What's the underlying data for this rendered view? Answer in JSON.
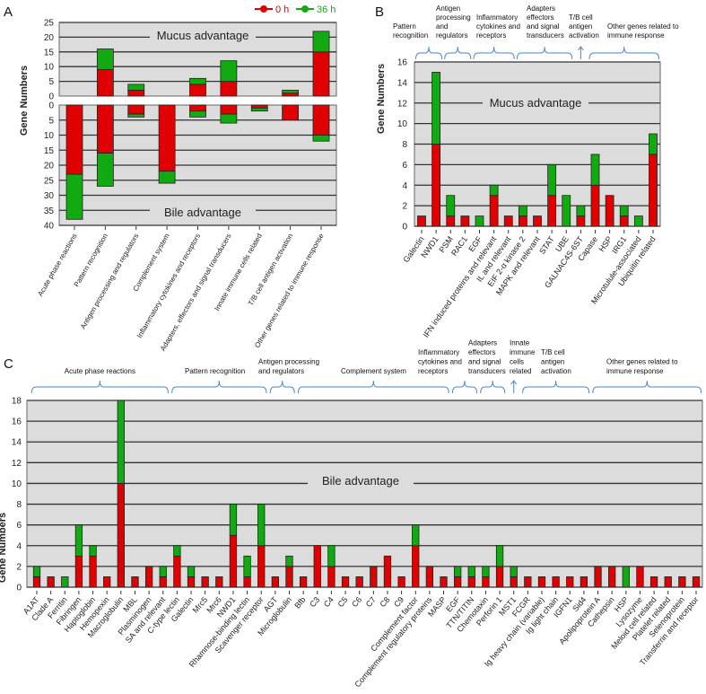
{
  "legend": {
    "series": [
      {
        "name": "0 h",
        "color": "#e00000"
      },
      {
        "name": "36 h",
        "color": "#11aa11"
      }
    ]
  },
  "chart_data": [
    {
      "panel": "A",
      "type": "bar",
      "stacked": true,
      "ylabel": "Gene Numbers",
      "top_region_label": "Mucus advantage",
      "bottom_region_label": "Bile advantage",
      "ylim_top": [
        0,
        25
      ],
      "ylim_bottom": [
        0,
        40
      ],
      "yticks_top": [
        0,
        5,
        10,
        15,
        20,
        25
      ],
      "yticks_bottom": [
        0,
        5,
        10,
        15,
        20,
        25,
        30,
        35,
        40
      ],
      "categories": [
        "Acute phase reactions",
        "Pattern recognition",
        "Antigen processing and regulators",
        "Complement system",
        "Inflammatory cytokines and receptors",
        "Adapters, effectors and signal transducers",
        "Innate immune cells related",
        "T/B cell antigen activation",
        "Other genes related to immune response"
      ],
      "series": [
        {
          "name": "0 h",
          "mucus": [
            0,
            9,
            2,
            0,
            4,
            5,
            0,
            1,
            15
          ],
          "bile": [
            23,
            16,
            3,
            22,
            2,
            3,
            1,
            5,
            10
          ]
        },
        {
          "name": "36 h",
          "mucus": [
            0,
            7,
            2,
            0,
            2,
            7,
            0,
            1,
            7
          ],
          "bile": [
            15,
            11,
            1,
            4,
            2,
            3,
            1,
            0,
            2
          ]
        }
      ]
    },
    {
      "panel": "B",
      "type": "bar",
      "stacked": true,
      "ylabel": "Gene Numbers",
      "region_label": "Mucus advantage",
      "ylim": [
        0,
        16
      ],
      "yticks": [
        0,
        2,
        4,
        6,
        8,
        10,
        12,
        14,
        16
      ],
      "categories": [
        "Galectin",
        "NWD1",
        "PSM",
        "RAC1",
        "EGF",
        "IFN induced proteins and relevant",
        "IL and relevant",
        "EIF 2-α kinase 2",
        "MAPK and relevant",
        "STAT",
        "UBE",
        "GALNAC4S-6ST",
        "Capase",
        "HSP",
        "IRG1",
        "Microtulule-associated",
        "Ubiquitin related"
      ],
      "groups": [
        {
          "lines": [
            "Pattern",
            "recognition"
          ],
          "start": 0,
          "end": 1
        },
        {
          "lines": [
            "Antigen",
            "processing",
            "and",
            "regulators"
          ],
          "start": 2,
          "end": 3
        },
        {
          "lines": [
            "Inflammatory",
            "cytokines and",
            "receptors"
          ],
          "start": 4,
          "end": 6
        },
        {
          "lines": [
            "Adapters",
            "effectors",
            "and signal",
            "transducers"
          ],
          "start": 7,
          "end": 10
        },
        {
          "lines": [
            "T/B cell",
            "antigen",
            "activation"
          ],
          "start": 11,
          "end": 11,
          "arrow": true
        },
        {
          "lines": [
            "Other genes related to",
            "immune response"
          ],
          "start": 12,
          "end": 16
        }
      ],
      "series": [
        {
          "name": "0 h",
          "values": [
            1,
            8,
            1,
            1,
            0,
            3,
            1,
            1,
            1,
            3,
            0,
            1,
            4,
            3,
            1,
            0,
            7
          ]
        },
        {
          "name": "36 h",
          "values": [
            0,
            7,
            2,
            0,
            1,
            1,
            0,
            1,
            0,
            3,
            3,
            1,
            3,
            0,
            1,
            1,
            2
          ]
        }
      ]
    },
    {
      "panel": "C",
      "type": "bar",
      "stacked": true,
      "ylabel": "Gene Numbers",
      "region_label": "Bile advantage",
      "ylim": [
        0,
        18
      ],
      "yticks": [
        0,
        2,
        4,
        6,
        8,
        10,
        12,
        14,
        16,
        18
      ],
      "categories": [
        "A1AT",
        "Clade A",
        "Ferritin",
        "Fibringen",
        "Haptoglobin",
        "Hemopexin",
        "Macroglobulin",
        "MBL",
        "Plasminogen",
        "SA and relevant",
        "C-type lectin",
        "Galectin",
        "Mrc5",
        "Mrc6",
        "NWD1",
        "Rhamnose-binding lectin",
        "Scavenger receptor",
        "AGT",
        "Microglobulin",
        "Bfb",
        "C3",
        "C4",
        "C5",
        "C6",
        "C7",
        "C8",
        "C9",
        "Complement factor",
        "Complement regulatory proteins",
        "MASP",
        "EGF",
        "TTN/TITIN",
        "Chemotaxin",
        "Perforin 1",
        "MST1",
        "FCGR",
        "Ig heavy chain (variable)",
        "Ig light chain",
        "IGFN1",
        "Sid4",
        "Apolipoprotein A",
        "Cathepsin",
        "HSP",
        "Lysozyme",
        "Meloid cell related",
        "Platelet related",
        "Selenoprotein",
        "Transferrin and receptor"
      ],
      "groups": [
        {
          "lines": [
            "Acute phase  reactions"
          ],
          "start": 0,
          "end": 9
        },
        {
          "lines": [
            "Pattern recognition"
          ],
          "start": 10,
          "end": 16
        },
        {
          "lines": [
            "Antigen processing",
            "and regulators"
          ],
          "start": 17,
          "end": 18
        },
        {
          "lines": [
            "Complement system"
          ],
          "start": 19,
          "end": 29
        },
        {
          "lines": [
            "Inflammatory",
            "cytokines and",
            "receptors"
          ],
          "start": 30,
          "end": 31
        },
        {
          "lines": [
            "Adapters",
            "effectors",
            "and signal",
            "transducers"
          ],
          "start": 32,
          "end": 33
        },
        {
          "lines": [
            "Innate",
            "immune",
            "cells",
            "related"
          ],
          "start": 34,
          "end": 34,
          "arrow": true
        },
        {
          "lines": [
            "T/B cell",
            "antigen",
            "activation"
          ],
          "start": 35,
          "end": 39
        },
        {
          "lines": [
            "Other genes related to",
            "immune  response"
          ],
          "start": 40,
          "end": 47
        }
      ],
      "series": [
        {
          "name": "0 h",
          "values": [
            1,
            1,
            0,
            3,
            3,
            1,
            10,
            1,
            2,
            1,
            3,
            1,
            1,
            1,
            5,
            1,
            4,
            1,
            2,
            1,
            4,
            2,
            1,
            1,
            2,
            3,
            1,
            4,
            2,
            1,
            1,
            1,
            1,
            2,
            1,
            1,
            1,
            1,
            1,
            1,
            2,
            2,
            0,
            2,
            1,
            1,
            1,
            1
          ]
        },
        {
          "name": "36 h",
          "values": [
            1,
            0,
            1,
            3,
            1,
            0,
            8,
            0,
            0,
            1,
            1,
            1,
            0,
            0,
            3,
            2,
            4,
            0,
            1,
            0,
            0,
            2,
            0,
            0,
            0,
            0,
            0,
            2,
            0,
            0,
            1,
            1,
            1,
            2,
            1,
            0,
            0,
            0,
            0,
            0,
            0,
            0,
            2,
            0,
            0,
            0,
            0,
            0
          ]
        }
      ]
    }
  ]
}
